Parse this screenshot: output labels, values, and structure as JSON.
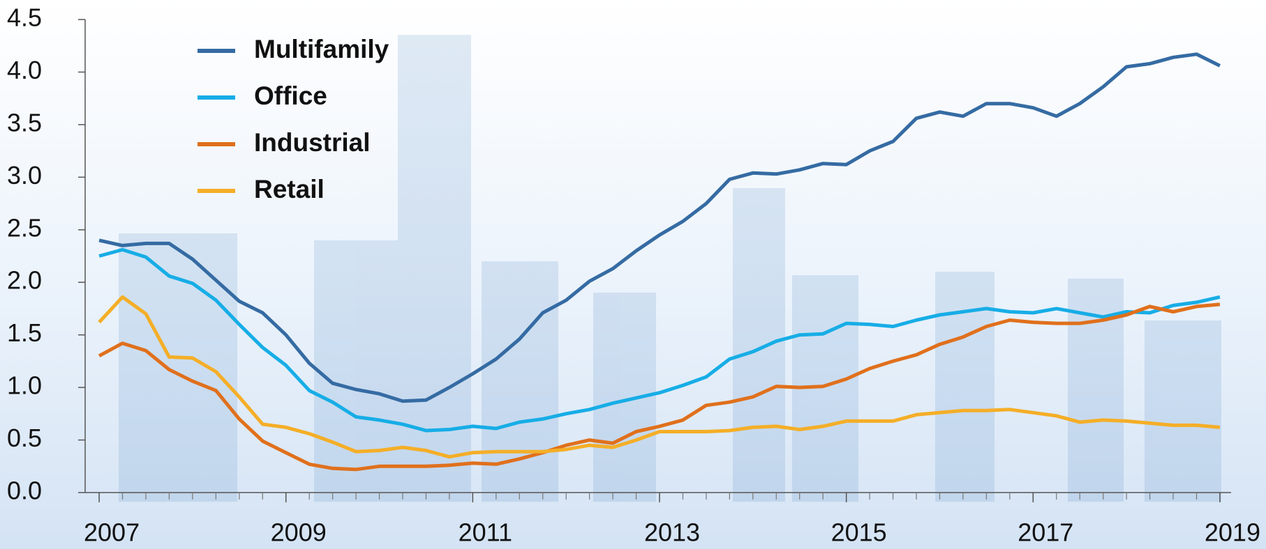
{
  "chart_data": {
    "type": "line",
    "x": [
      2007,
      2007.25,
      2007.5,
      2007.75,
      2008,
      2008.25,
      2008.5,
      2008.75,
      2009,
      2009.25,
      2009.5,
      2009.75,
      2010,
      2010.25,
      2010.5,
      2010.75,
      2011,
      2011.25,
      2011.5,
      2011.75,
      2012,
      2012.25,
      2012.5,
      2012.75,
      2013,
      2013.25,
      2013.5,
      2013.75,
      2014,
      2014.25,
      2014.5,
      2014.75,
      2015,
      2015.25,
      2015.5,
      2015.75,
      2016,
      2016.25,
      2016.5,
      2016.75,
      2017,
      2017.25,
      2017.5,
      2017.75,
      2018,
      2018.25,
      2018.5,
      2018.75,
      2019
    ],
    "series": [
      {
        "name": "Multifamily",
        "color": "#356ba3",
        "values": [
          2.4,
          2.35,
          2.37,
          2.37,
          2.22,
          2.02,
          1.82,
          1.71,
          1.5,
          1.23,
          1.04,
          0.98,
          0.94,
          0.87,
          0.88,
          1.0,
          1.13,
          1.27,
          1.46,
          1.71,
          1.83,
          2.01,
          2.13,
          2.3,
          2.45,
          2.58,
          2.75,
          2.98,
          3.04,
          3.03,
          3.07,
          3.13,
          3.12,
          3.25,
          3.34,
          3.56,
          3.62,
          3.58,
          3.7,
          3.7,
          3.66,
          3.58,
          3.7,
          3.86,
          4.05,
          4.08,
          4.14,
          4.17,
          4.06
        ]
      },
      {
        "name": "Office",
        "color": "#17ade6",
        "values": [
          2.25,
          2.31,
          2.24,
          2.06,
          1.99,
          1.83,
          1.6,
          1.38,
          1.21,
          0.97,
          0.86,
          0.72,
          0.69,
          0.65,
          0.59,
          0.6,
          0.63,
          0.61,
          0.67,
          0.7,
          0.75,
          0.79,
          0.85,
          0.9,
          0.95,
          1.02,
          1.1,
          1.27,
          1.34,
          1.44,
          1.5,
          1.51,
          1.61,
          1.6,
          1.58,
          1.64,
          1.69,
          1.72,
          1.75,
          1.72,
          1.71,
          1.75,
          1.71,
          1.67,
          1.72,
          1.71,
          1.78,
          1.81,
          1.86
        ]
      },
      {
        "name": "Industrial",
        "color": "#e0701c",
        "values": [
          1.3,
          1.42,
          1.35,
          1.17,
          1.06,
          0.97,
          0.7,
          0.49,
          0.38,
          0.27,
          0.23,
          0.22,
          0.25,
          0.25,
          0.25,
          0.26,
          0.28,
          0.27,
          0.32,
          0.38,
          0.45,
          0.5,
          0.47,
          0.58,
          0.63,
          0.69,
          0.83,
          0.86,
          0.91,
          1.01,
          1.0,
          1.01,
          1.08,
          1.18,
          1.25,
          1.31,
          1.41,
          1.48,
          1.58,
          1.64,
          1.62,
          1.61,
          1.61,
          1.64,
          1.69,
          1.77,
          1.72,
          1.77,
          1.79
        ]
      },
      {
        "name": "Retail",
        "color": "#f4ae27",
        "values": [
          1.62,
          1.86,
          1.7,
          1.29,
          1.28,
          1.15,
          0.91,
          0.65,
          0.62,
          0.56,
          0.48,
          0.39,
          0.4,
          0.43,
          0.4,
          0.34,
          0.38,
          0.39,
          0.39,
          0.39,
          0.41,
          0.45,
          0.43,
          0.5,
          0.58,
          0.58,
          0.58,
          0.59,
          0.62,
          0.63,
          0.6,
          0.63,
          0.68,
          0.68,
          0.68,
          0.74,
          0.76,
          0.78,
          0.78,
          0.79,
          0.76,
          0.73,
          0.67,
          0.69,
          0.68,
          0.66,
          0.64,
          0.64,
          0.62
        ]
      }
    ],
    "xlim": [
      2006.85,
      2019.12
    ],
    "xticks": [
      2007,
      2009,
      2011,
      2013,
      2015,
      2017,
      2019
    ],
    "ylim": [
      0,
      4.5
    ],
    "yticks": [
      {
        "value": 0,
        "label": "0.0"
      },
      0.5,
      {
        "value": 1,
        "label": "1.0"
      },
      1.5,
      {
        "value": 2,
        "label": "2.0"
      },
      2.5,
      {
        "value": 3,
        "label": "3.0"
      },
      3.5,
      {
        "value": 4,
        "label": "4.0"
      },
      4.5
    ],
    "legend": "upper left"
  }
}
